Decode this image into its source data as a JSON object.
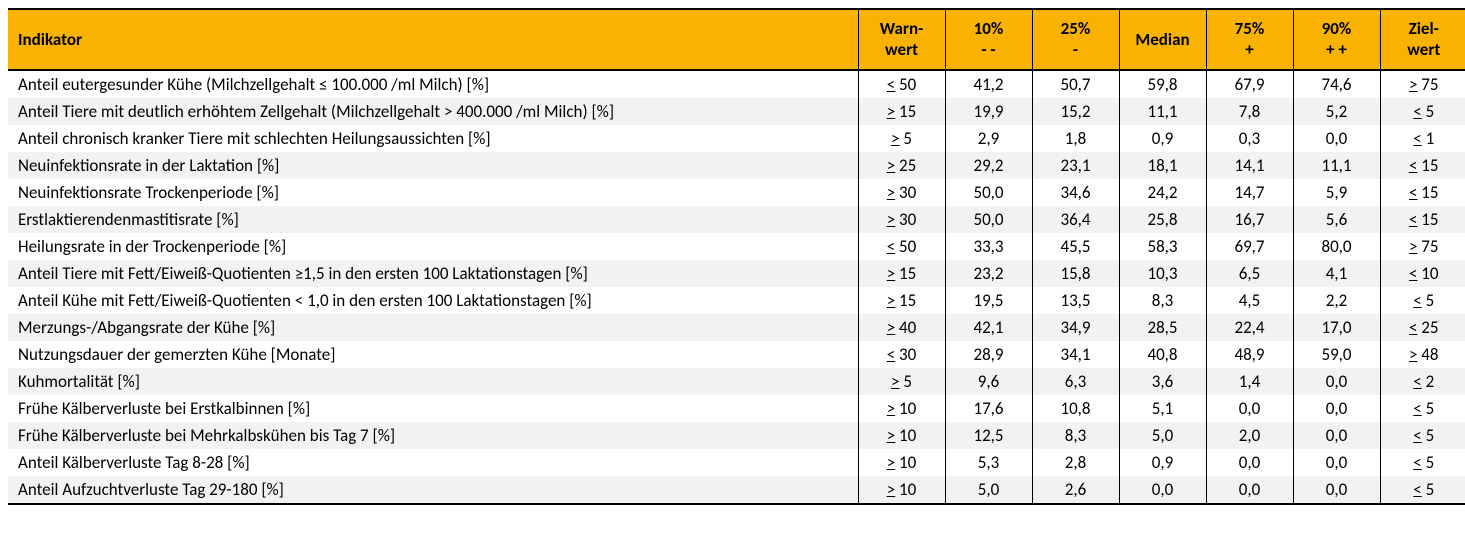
{
  "table": {
    "header": {
      "background_color": "#f9b200",
      "text_color": "#000000",
      "indikator": "Indikator",
      "warnwert_l1": "Warn-",
      "warnwert_l2": "wert",
      "p10_l1": "10%",
      "p10_l2": "- -",
      "p25_l1": "25%",
      "p25_l2": "-",
      "median": "Median",
      "p75_l1": "75%",
      "p75_l2": "+",
      "p90_l1": "90%",
      "p90_l2": "+ +",
      "ziel_l1": "Ziel-",
      "ziel_l2": "wert"
    },
    "row_alt_color": "#f2f2f2",
    "rows": [
      {
        "ind": "Anteil eutergesunder Kühe (Milchzellgehalt ≤ 100.000 /ml Milch) [%]",
        "warn_sym": "<",
        "warn_val": "50",
        "p10": "41,2",
        "p25": "50,7",
        "med": "59,8",
        "p75": "67,9",
        "p90": "74,6",
        "ziel_sym": ">",
        "ziel_val": "75"
      },
      {
        "ind": "Anteil Tiere mit deutlich erhöhtem Zellgehalt (Milchzellgehalt > 400.000 /ml Milch) [%]",
        "warn_sym": ">",
        "warn_val": "15",
        "p10": "19,9",
        "p25": "15,2",
        "med": "11,1",
        "p75": "7,8",
        "p90": "5,2",
        "ziel_sym": "<",
        "ziel_val": "5"
      },
      {
        "ind": "Anteil chronisch kranker Tiere mit schlechten Heilungsaussichten [%]",
        "warn_sym": ">",
        "warn_val": "5",
        "p10": "2,9",
        "p25": "1,8",
        "med": "0,9",
        "p75": "0,3",
        "p90": "0,0",
        "ziel_sym": "<",
        "ziel_val": "1"
      },
      {
        "ind": "Neuinfektionsrate in der Laktation [%]",
        "warn_sym": ">",
        "warn_val": "25",
        "p10": "29,2",
        "p25": "23,1",
        "med": "18,1",
        "p75": "14,1",
        "p90": "11,1",
        "ziel_sym": "<",
        "ziel_val": "15"
      },
      {
        "ind": "Neuinfektionsrate Trockenperiode [%]",
        "warn_sym": ">",
        "warn_val": "30",
        "p10": "50,0",
        "p25": "34,6",
        "med": "24,2",
        "p75": "14,7",
        "p90": "5,9",
        "ziel_sym": "<",
        "ziel_val": "15"
      },
      {
        "ind": "Erstlaktierendenmastitisrate [%]",
        "warn_sym": ">",
        "warn_val": "30",
        "p10": "50,0",
        "p25": "36,4",
        "med": "25,8",
        "p75": "16,7",
        "p90": "5,6",
        "ziel_sym": "<",
        "ziel_val": "15"
      },
      {
        "ind": "Heilungsrate in der Trockenperiode [%]",
        "warn_sym": "<",
        "warn_val": "50",
        "p10": "33,3",
        "p25": "45,5",
        "med": "58,3",
        "p75": "69,7",
        "p90": "80,0",
        "ziel_sym": ">",
        "ziel_val": "75"
      },
      {
        "ind": "Anteil Tiere mit Fett/Eiweiß-Quotienten ≥1,5 in den ersten 100 Laktationstagen [%]",
        "warn_sym": ">",
        "warn_val": "15",
        "p10": "23,2",
        "p25": "15,8",
        "med": "10,3",
        "p75": "6,5",
        "p90": "4,1",
        "ziel_sym": "<",
        "ziel_val": "10"
      },
      {
        "ind": "Anteil Kühe mit Fett/Eiweiß-Quotienten < 1,0 in den ersten 100 Laktationstagen [%]",
        "warn_sym": ">",
        "warn_val": "15",
        "p10": "19,5",
        "p25": "13,5",
        "med": "8,3",
        "p75": "4,5",
        "p90": "2,2",
        "ziel_sym": "<",
        "ziel_val": "5"
      },
      {
        "ind": "Merzungs-/Abgangsrate der Kühe [%]",
        "warn_sym": ">",
        "warn_val": "40",
        "p10": "42,1",
        "p25": "34,9",
        "med": "28,5",
        "p75": "22,4",
        "p90": "17,0",
        "ziel_sym": "<",
        "ziel_val": "25"
      },
      {
        "ind": "Nutzungsdauer der gemerzten Kühe [Monate]",
        "warn_sym": "<",
        "warn_val": "30",
        "p10": "28,9",
        "p25": "34,1",
        "med": "40,8",
        "p75": "48,9",
        "p90": "59,0",
        "ziel_sym": ">",
        "ziel_val": "48"
      },
      {
        "ind": "Kuhmortalität [%]",
        "warn_sym": ">",
        "warn_val": "5",
        "p10": "9,6",
        "p25": "6,3",
        "med": "3,6",
        "p75": "1,4",
        "p90": "0,0",
        "ziel_sym": "<",
        "ziel_val": "2"
      },
      {
        "ind": "Frühe Kälberverluste bei Erstkalbinnen [%]",
        "warn_sym": ">",
        "warn_val": "10",
        "p10": "17,6",
        "p25": "10,8",
        "med": "5,1",
        "p75": "0,0",
        "p90": "0,0",
        "ziel_sym": "<",
        "ziel_val": "5"
      },
      {
        "ind": "Frühe Kälberverluste bei Mehrkalbskühen bis Tag 7 [%]",
        "warn_sym": ">",
        "warn_val": "10",
        "p10": "12,5",
        "p25": "8,3",
        "med": "5,0",
        "p75": "2,0",
        "p90": "0,0",
        "ziel_sym": "<",
        "ziel_val": "5"
      },
      {
        "ind": "Anteil Kälberverluste Tag 8-28 [%]",
        "warn_sym": ">",
        "warn_val": "10",
        "p10": "5,3",
        "p25": "2,8",
        "med": "0,9",
        "p75": "0,0",
        "p90": "0,0",
        "ziel_sym": "<",
        "ziel_val": "5"
      },
      {
        "ind": "Anteil Aufzuchtverluste Tag 29-180 [%]",
        "warn_sym": ">",
        "warn_val": "10",
        "p10": "5,0",
        "p25": "2,6",
        "med": "0,0",
        "p75": "0,0",
        "p90": "0,0",
        "ziel_sym": "<",
        "ziel_val": "5"
      }
    ]
  }
}
